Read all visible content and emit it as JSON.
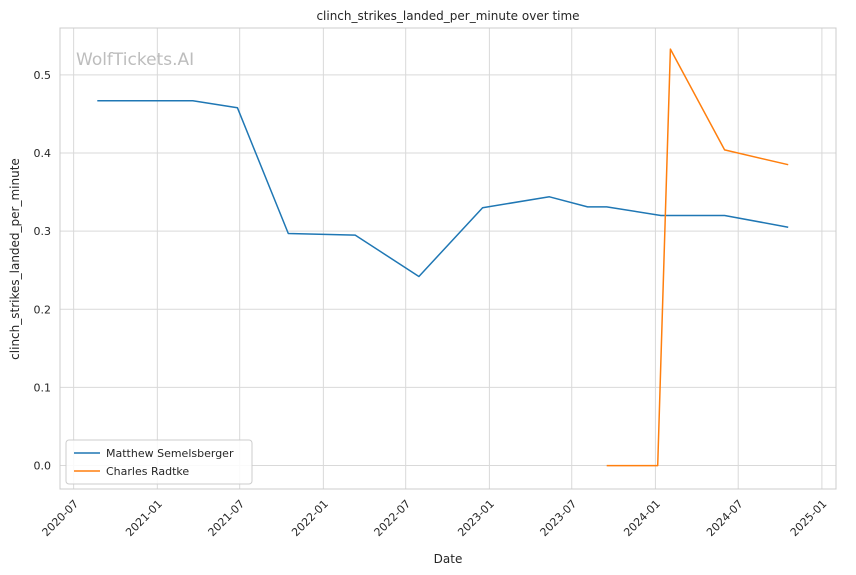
{
  "chart_data": {
    "type": "line",
    "title": "clinch_strikes_landed_per_minute over time",
    "xlabel": "Date",
    "ylabel": "clinch_strikes_landed_per_minute",
    "watermark": "WolfTickets.AI",
    "x_ticks": [
      "2020-07",
      "2021-01",
      "2021-07",
      "2022-01",
      "2022-07",
      "2023-01",
      "2023-07",
      "2024-01",
      "2024-07",
      "2025-01"
    ],
    "y_ticks": [
      "0.0",
      "0.1",
      "0.2",
      "0.3",
      "0.4",
      "0.5"
    ],
    "xlim": [
      "2020-06-01",
      "2025-02-01"
    ],
    "ylim": [
      -0.03,
      0.56
    ],
    "grid": true,
    "legend_position": "lower-left",
    "series": [
      {
        "name": "Matthew Semelsberger",
        "color": "#1f77b4",
        "points": [
          {
            "x": "2020-08-22",
            "y": 0.467
          },
          {
            "x": "2021-03-20",
            "y": 0.467
          },
          {
            "x": "2021-06-26",
            "y": 0.458
          },
          {
            "x": "2021-10-16",
            "y": 0.297
          },
          {
            "x": "2022-03-12",
            "y": 0.295
          },
          {
            "x": "2022-07-30",
            "y": 0.242
          },
          {
            "x": "2022-12-17",
            "y": 0.33
          },
          {
            "x": "2023-05-13",
            "y": 0.344
          },
          {
            "x": "2023-08-05",
            "y": 0.331
          },
          {
            "x": "2023-09-16",
            "y": 0.331
          },
          {
            "x": "2024-01-13",
            "y": 0.32
          },
          {
            "x": "2024-06-01",
            "y": 0.32
          },
          {
            "x": "2024-10-19",
            "y": 0.305
          }
        ]
      },
      {
        "name": "Charles Radtke",
        "color": "#ff7f0e",
        "points": [
          {
            "x": "2023-09-16",
            "y": 0.0
          },
          {
            "x": "2024-01-06",
            "y": 0.0
          },
          {
            "x": "2024-02-03",
            "y": 0.533
          },
          {
            "x": "2024-06-01",
            "y": 0.404
          },
          {
            "x": "2024-10-19",
            "y": 0.385
          }
        ]
      }
    ]
  }
}
